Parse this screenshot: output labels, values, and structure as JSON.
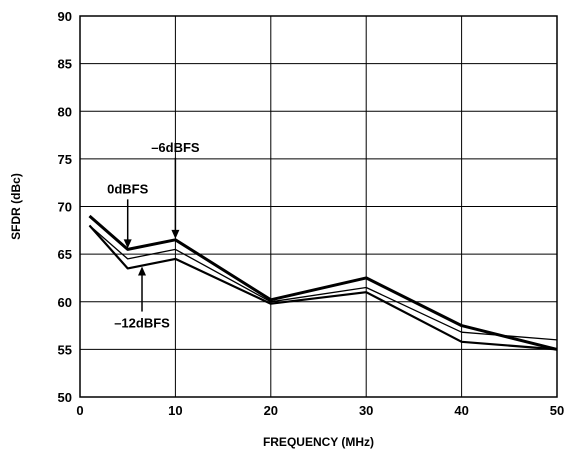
{
  "chart_data": {
    "type": "line",
    "title": "",
    "xlabel": "FREQUENCY (MHz)",
    "ylabel": "SFDR (dBc)",
    "xlim": [
      0,
      50
    ],
    "ylim": [
      50,
      90
    ],
    "xticks": [
      "0",
      "10",
      "20",
      "30",
      "40",
      "50"
    ],
    "yticks": [
      "50",
      "55",
      "60",
      "65",
      "70",
      "75",
      "80",
      "85",
      "90"
    ],
    "grid": true,
    "legend": "none",
    "series": [
      {
        "name": "0dBFS",
        "x": [
          1,
          5,
          10,
          20,
          30,
          40,
          50
        ],
        "y": [
          69.0,
          65.5,
          66.5,
          60.2,
          62.5,
          57.5,
          55.0
        ]
      },
      {
        "name": "–6dBFS",
        "x": [
          1,
          5,
          10,
          20,
          30,
          40,
          50
        ],
        "y": [
          68.0,
          64.5,
          65.5,
          60.0,
          61.5,
          56.8,
          56.0
        ]
      },
      {
        "name": "–12dBFS",
        "x": [
          1,
          5,
          10,
          20,
          30,
          40,
          50
        ],
        "y": [
          68.0,
          63.5,
          64.5,
          59.8,
          61.0,
          55.8,
          55.0
        ]
      }
    ],
    "annotations": [
      {
        "label": "0dBFS",
        "x": 5,
        "y": 65.5,
        "direction": "down"
      },
      {
        "label": "–6dBFS",
        "x": 10,
        "y": 66.5,
        "direction": "down"
      },
      {
        "label": "–12dBFS",
        "x": 6.5,
        "y": 63.8,
        "direction": "up"
      }
    ]
  }
}
